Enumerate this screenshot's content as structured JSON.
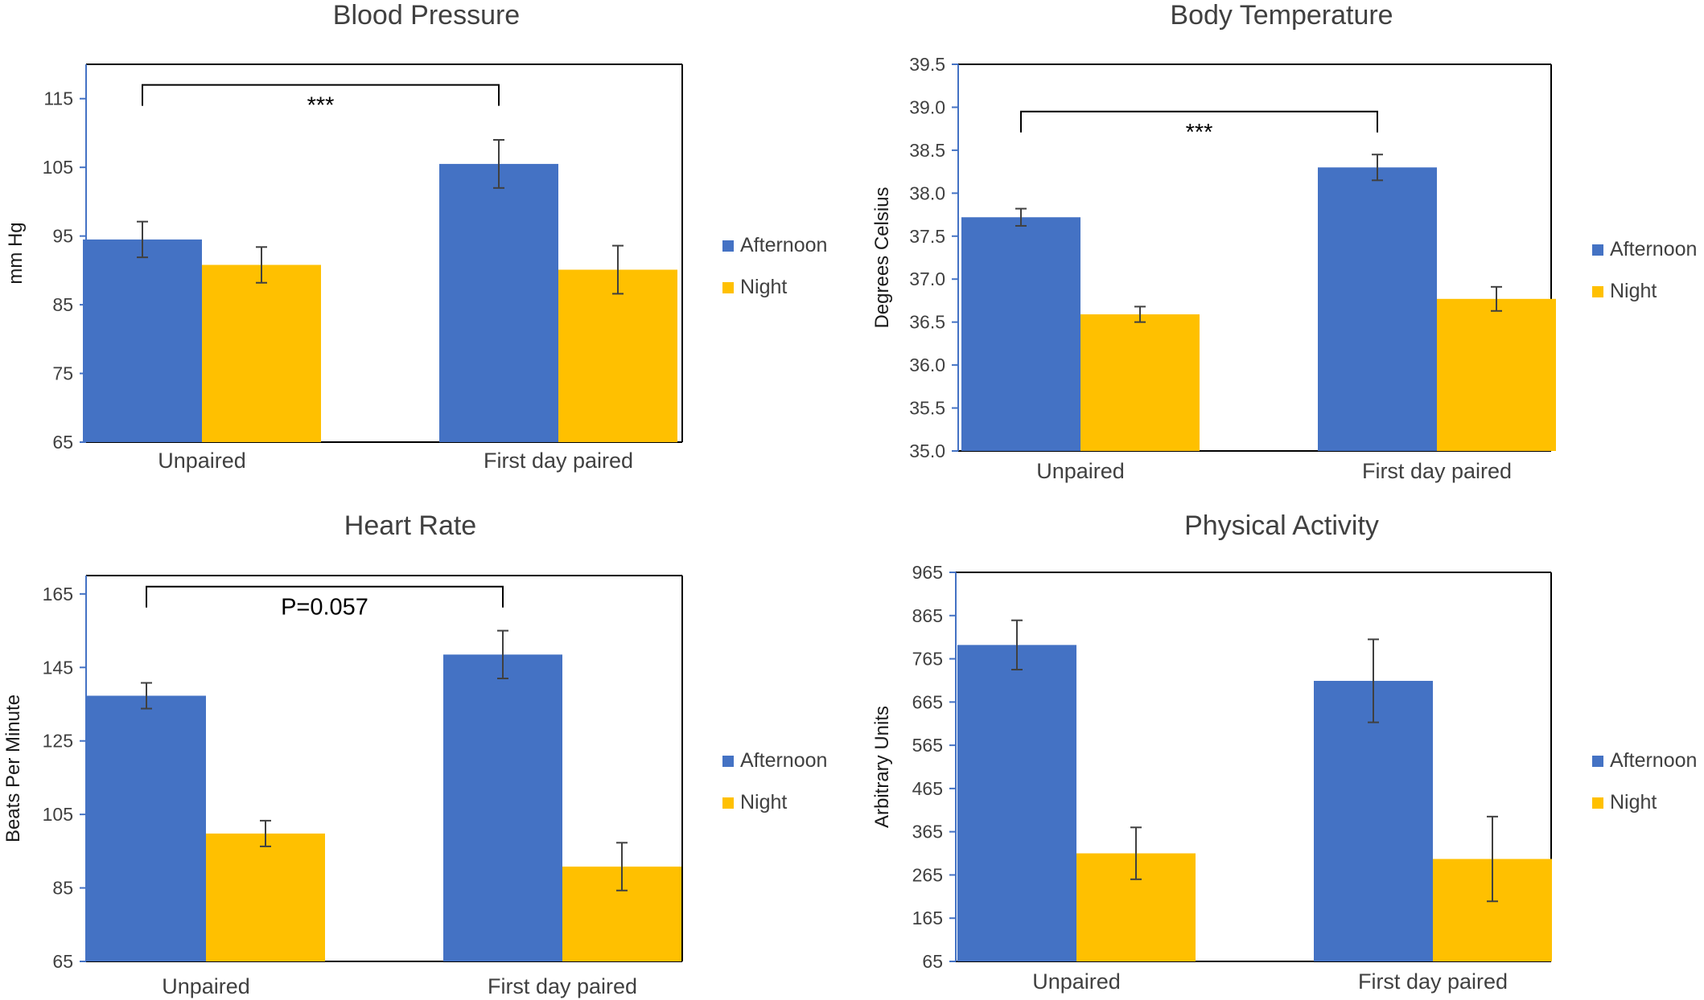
{
  "chart_data": [
    {
      "type": "bar",
      "title": "Blood Pressure",
      "ylabel": "mm Hg",
      "xlabel": "",
      "categories": [
        "Unpaired",
        "First day paired"
      ],
      "ylim": [
        65,
        120
      ],
      "yticks": [
        65,
        75,
        85,
        95,
        105,
        115
      ],
      "series": [
        {
          "name": "Afternoon",
          "color": "#4472C4",
          "values": [
            94.5,
            105.5
          ],
          "errors": [
            2.6,
            3.5
          ]
        },
        {
          "name": "Night",
          "color": "#FFC000",
          "values": [
            90.8,
            90.1
          ],
          "errors": [
            2.6,
            3.5
          ]
        }
      ],
      "annotation": {
        "text": "***",
        "from": 0,
        "to": 1,
        "y": 117
      },
      "legend": "right"
    },
    {
      "type": "bar",
      "title": "Body Temperature",
      "ylabel": "Degrees Celsius",
      "xlabel": "",
      "categories": [
        "Unpaired",
        "First day paired"
      ],
      "ylim": [
        35.0,
        39.5
      ],
      "yticks": [
        "35.0",
        "35.5",
        "36.0",
        "36.5",
        "37.0",
        "37.5",
        "38.0",
        "38.5",
        "39.0",
        "39.5"
      ],
      "series": [
        {
          "name": "Afternoon",
          "color": "#4472C4",
          "values": [
            37.72,
            38.3
          ],
          "errors": [
            0.1,
            0.15
          ]
        },
        {
          "name": "Night",
          "color": "#FFC000",
          "values": [
            36.59,
            36.77
          ],
          "errors": [
            0.09,
            0.14
          ]
        }
      ],
      "annotation": {
        "text": "***",
        "from": 0,
        "to": 1,
        "y": 38.95
      },
      "legend": "right"
    },
    {
      "type": "bar",
      "title": "Heart Rate",
      "ylabel": "Beats Per Minute",
      "xlabel": "",
      "categories": [
        "Unpaired",
        "First day paired"
      ],
      "ylim": [
        65,
        170
      ],
      "yticks": [
        65,
        85,
        105,
        125,
        145,
        165
      ],
      "series": [
        {
          "name": "Afternoon",
          "color": "#4472C4",
          "values": [
            137.3,
            148.5
          ],
          "errors": [
            3.5,
            6.5
          ]
        },
        {
          "name": "Night",
          "color": "#FFC000",
          "values": [
            99.8,
            90.8
          ],
          "errors": [
            3.5,
            6.5
          ]
        }
      ],
      "annotation": {
        "text": "P=0.057",
        "from": 0,
        "to": 1,
        "y": 167
      },
      "legend": "right"
    },
    {
      "type": "bar",
      "title": "Physical Activity",
      "ylabel": "Arbitrary Units",
      "xlabel": "",
      "categories": [
        "Unpaired",
        "First day paired"
      ],
      "ylim": [
        65,
        965
      ],
      "yticks": [
        65,
        165,
        265,
        365,
        465,
        565,
        665,
        765,
        865,
        965
      ],
      "series": [
        {
          "name": "Afternoon",
          "color": "#4472C4",
          "values": [
            797,
            714
          ],
          "errors": [
            57,
            96
          ]
        },
        {
          "name": "Night",
          "color": "#FFC000",
          "values": [
            315,
            302
          ],
          "errors": [
            60,
            98
          ]
        }
      ],
      "annotation": null,
      "legend": "right"
    }
  ]
}
